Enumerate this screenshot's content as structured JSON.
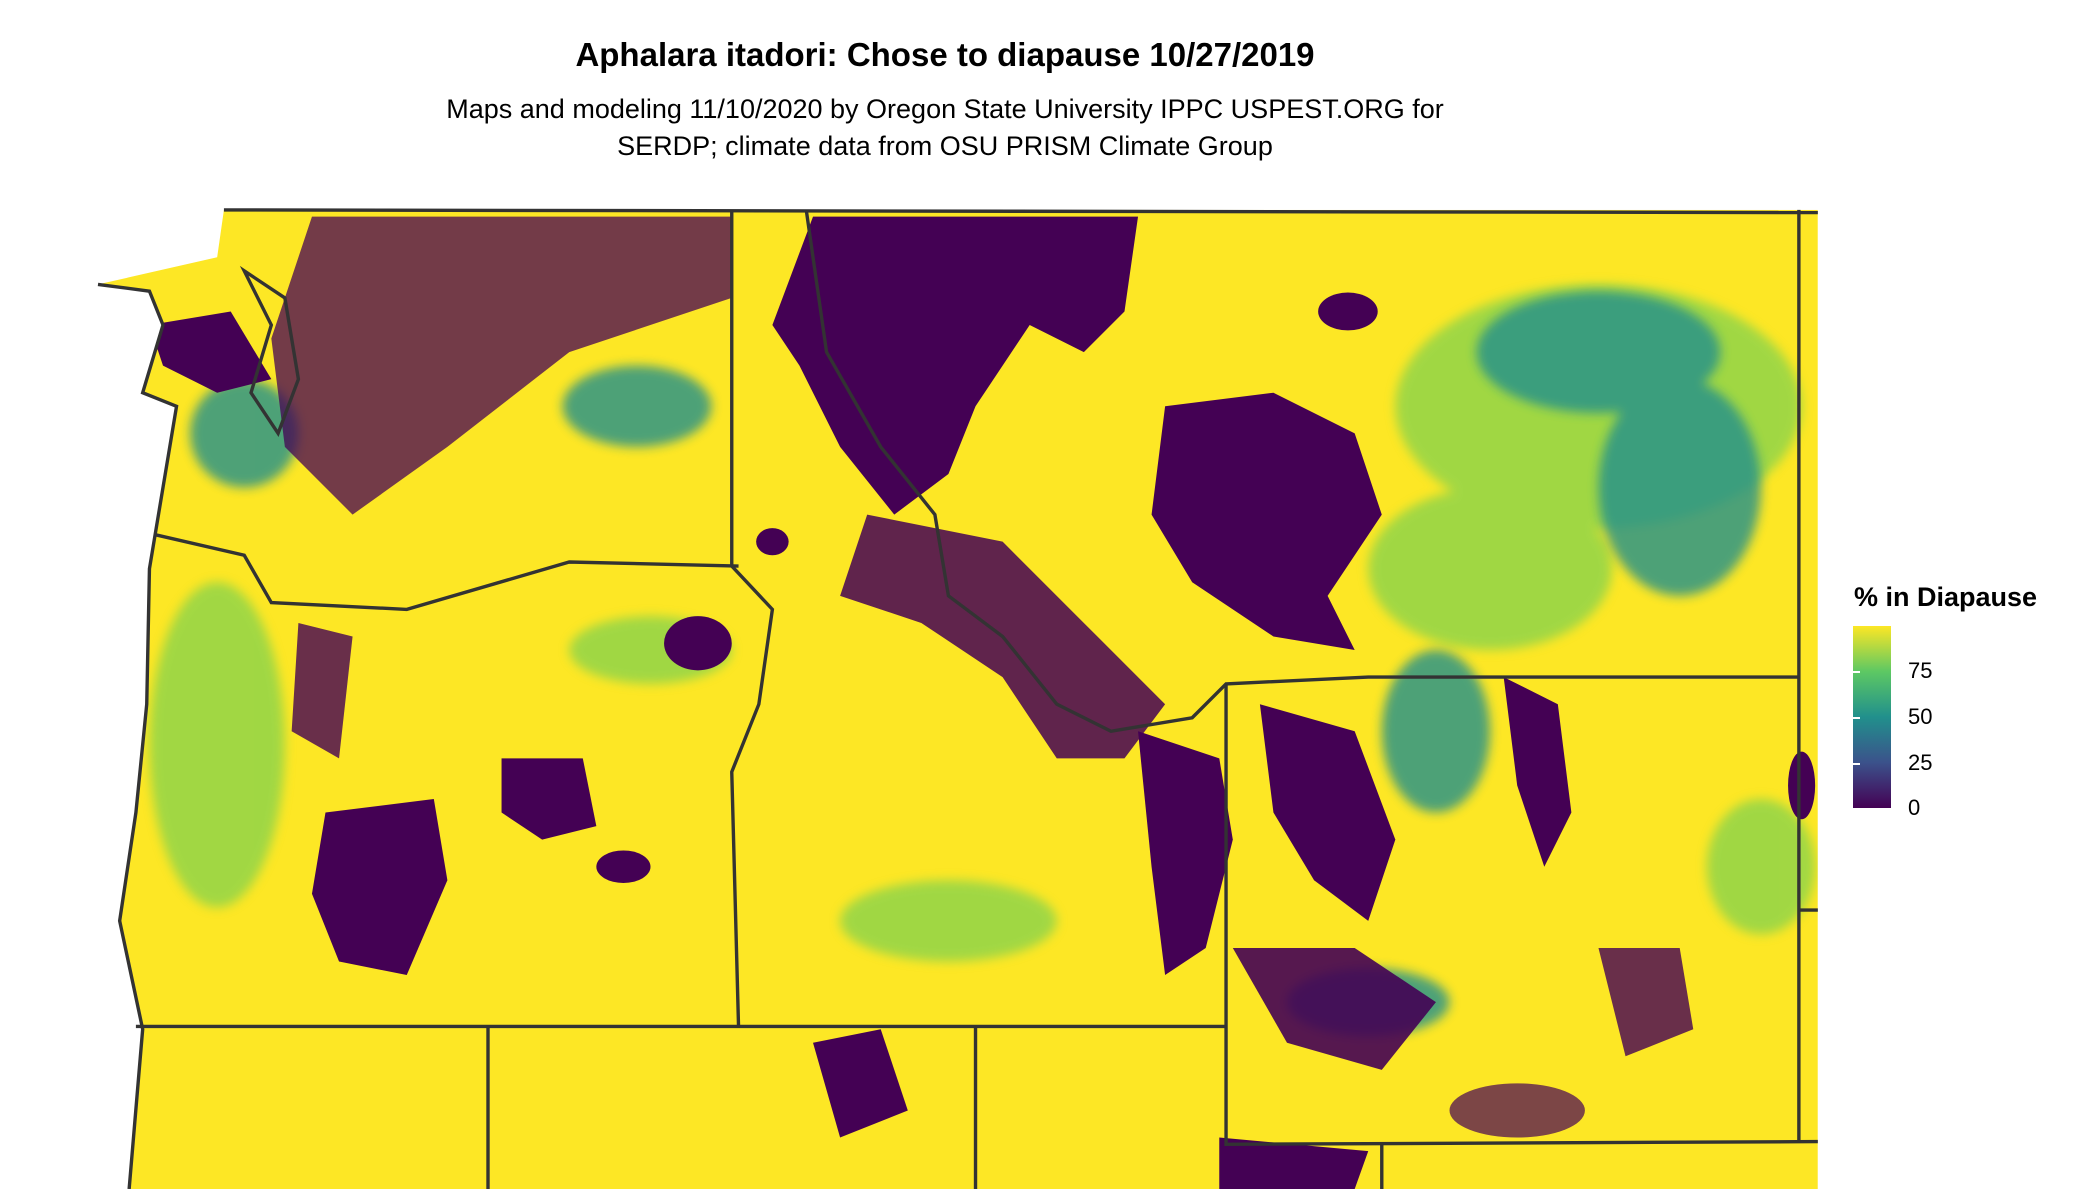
{
  "title": "Aphalara itadori: Chose to diapause 10/27/2019",
  "subtitle_line1": "Maps and modeling 11/10/2020 by Oregon State University IPPC USPEST.ORG for",
  "subtitle_line2": "SERDP; climate data from OSU PRISM Climate Group",
  "legend": {
    "title": "% in Diapause",
    "labels": [
      "75",
      "50",
      "25",
      "0"
    ],
    "range": [
      0,
      100
    ],
    "colors": [
      "#440154",
      "#3b528b",
      "#21908c",
      "#5dc863",
      "#fde725"
    ]
  },
  "colors": {
    "high": "#fde725",
    "low": "#440154",
    "mid": "#21908c",
    "border": "#333333"
  }
}
